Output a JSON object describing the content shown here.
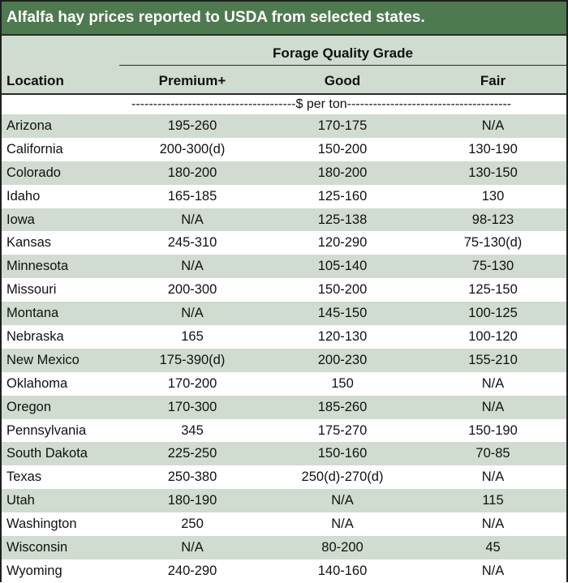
{
  "title": "Alfalfa hay prices reported to USDA from selected states.",
  "header": {
    "group": "Forage Quality Grade",
    "location": "Location",
    "columns": [
      "Premium+",
      "Good",
      "Fair"
    ]
  },
  "units": "--------------------------------------$ per ton--------------------------------------",
  "rows": [
    {
      "location": "Arizona",
      "premium": "195-260",
      "good": "170-175",
      "fair": "N/A"
    },
    {
      "location": "California",
      "premium": "200-300(d)",
      "good": "150-200",
      "fair": "130-190"
    },
    {
      "location": "Colorado",
      "premium": "180-200",
      "good": "180-200",
      "fair": "130-150"
    },
    {
      "location": "Idaho",
      "premium": "165-185",
      "good": "125-160",
      "fair": "130"
    },
    {
      "location": "Iowa",
      "premium": "N/A",
      "good": "125-138",
      "fair": "98-123"
    },
    {
      "location": "Kansas",
      "premium": "245-310",
      "good": "120-290",
      "fair": "75-130(d)"
    },
    {
      "location": "Minnesota",
      "premium": "N/A",
      "good": "105-140",
      "fair": "75-130"
    },
    {
      "location": "Missouri",
      "premium": "200-300",
      "good": "150-200",
      "fair": "125-150"
    },
    {
      "location": "Montana",
      "premium": "N/A",
      "good": "145-150",
      "fair": "100-125"
    },
    {
      "location": "Nebraska",
      "premium": "165",
      "good": "120-130",
      "fair": "100-120"
    },
    {
      "location": "New Mexico",
      "premium": "175-390(d)",
      "good": "200-230",
      "fair": "155-210"
    },
    {
      "location": "Oklahoma",
      "premium": "170-200",
      "good": "150",
      "fair": "N/A"
    },
    {
      "location": "Oregon",
      "premium": "170-300",
      "good": "185-260",
      "fair": "N/A"
    },
    {
      "location": "Pennsylvania",
      "premium": "345",
      "good": "175-270",
      "fair": "150-190"
    },
    {
      "location": "South Dakota",
      "premium": "225-250",
      "good": "150-160",
      "fair": "70-85"
    },
    {
      "location": "Texas",
      "premium": "250-380",
      "good": "250(d)-270(d)",
      "fair": "N/A"
    },
    {
      "location": "Utah",
      "premium": "180-190",
      "good": "N/A",
      "fair": "115"
    },
    {
      "location": "Washington",
      "premium": "250",
      "good": "N/A",
      "fair": "N/A"
    },
    {
      "location": "Wisconsin",
      "premium": "N/A",
      "good": "80-200",
      "fair": "45"
    },
    {
      "location": "Wyoming",
      "premium": "240-290",
      "good": "140-160",
      "fair": "N/A"
    }
  ],
  "colors": {
    "title_bg": "#4e7a4f",
    "row_shade": "#cfdccf"
  }
}
